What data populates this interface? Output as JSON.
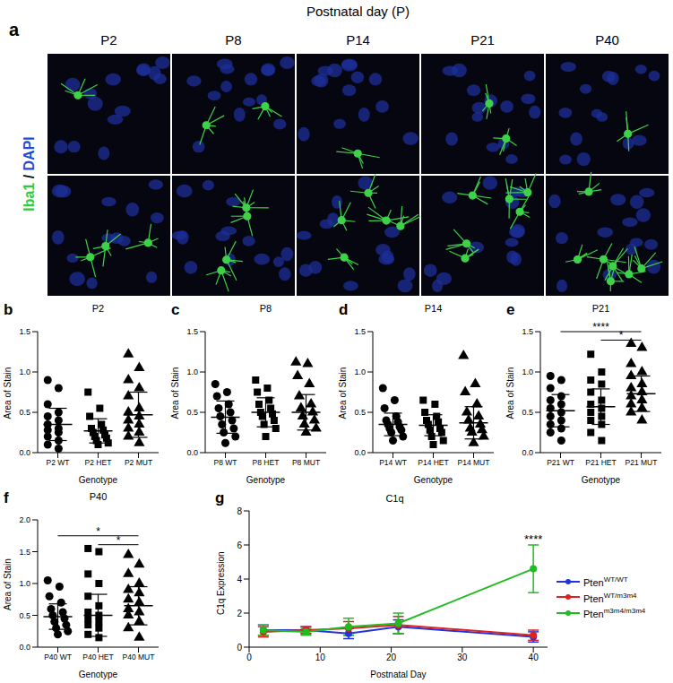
{
  "image_panel": {
    "panel": "a",
    "title": "Postnatal day (P)",
    "columns": [
      "P2",
      "P8",
      "P14",
      "P21",
      "P40"
    ],
    "stain": [
      {
        "text": "Iba1",
        "color": "#2ecc40"
      },
      {
        "text": " / ",
        "color": "#000000"
      },
      {
        "text": "DAPI",
        "color": "#1f4fd6"
      }
    ]
  },
  "chart_data": [
    {
      "panel": "b",
      "type": "scatter",
      "title": "P2",
      "x_label": "Genotype",
      "y_label": "Area of Stain",
      "color": "#000000",
      "categories": [
        "P2 WT",
        "P2 HET",
        "P2 MUT"
      ],
      "ylim": [
        0,
        1.5
      ],
      "yticks": [
        {
          "value": 0,
          "label": "0.0"
        },
        {
          "value": 0.5,
          "label": "0.5"
        },
        {
          "value": 1,
          "label": "1.0"
        },
        {
          "value": 1.5,
          "label": "1.5"
        }
      ],
      "groups": [
        {
          "marker": "circle",
          "values": [
            0.9,
            0.8,
            0.6,
            0.5,
            0.45,
            0.4,
            0.35,
            0.3,
            0.28,
            0.25,
            0.2,
            0.15,
            0.1,
            0.05
          ],
          "mean": 0.35,
          "sd": 0.2
        },
        {
          "marker": "square",
          "values": [
            0.75,
            0.55,
            0.45,
            0.35,
            0.3,
            0.28,
            0.25,
            0.22,
            0.2,
            0.18,
            0.15,
            0.12,
            0.1
          ],
          "mean": 0.27,
          "sd": 0.15
        },
        {
          "marker": "triangle",
          "values": [
            1.22,
            1.05,
            0.9,
            0.8,
            0.7,
            0.55,
            0.5,
            0.45,
            0.4,
            0.35,
            0.3,
            0.25,
            0.2,
            0.12
          ],
          "mean": 0.47,
          "sd": 0.28
        }
      ],
      "annotations": []
    },
    {
      "panel": "c",
      "type": "scatter",
      "title": "P8",
      "x_label": "Genotype",
      "y_label": "Area of Stain",
      "color": "#000000",
      "categories": [
        "P8 WT",
        "P8 HET",
        "P8 MUT"
      ],
      "ylim": [
        0,
        1.5
      ],
      "yticks": [
        {
          "value": 0,
          "label": "0.0"
        },
        {
          "value": 0.5,
          "label": "0.5"
        },
        {
          "value": 1,
          "label": "1.0"
        },
        {
          "value": 1.5,
          "label": "1.5"
        }
      ],
      "groups": [
        {
          "marker": "circle",
          "values": [
            0.85,
            0.75,
            0.7,
            0.6,
            0.55,
            0.5,
            0.45,
            0.4,
            0.35,
            0.3,
            0.25,
            0.2,
            0.12
          ],
          "mean": 0.44,
          "sd": 0.2
        },
        {
          "marker": "square",
          "values": [
            0.9,
            0.8,
            0.75,
            0.65,
            0.6,
            0.55,
            0.5,
            0.48,
            0.45,
            0.4,
            0.35,
            0.3,
            0.2
          ],
          "mean": 0.5,
          "sd": 0.18
        },
        {
          "marker": "triangle",
          "values": [
            1.12,
            1.1,
            0.95,
            0.85,
            0.7,
            0.6,
            0.55,
            0.5,
            0.45,
            0.4,
            0.35,
            0.3,
            0.25
          ],
          "mean": 0.5,
          "sd": 0.22
        }
      ],
      "annotations": []
    },
    {
      "panel": "d",
      "type": "scatter",
      "title": "P14",
      "x_label": "Genotype",
      "y_label": "Area of Stain",
      "color": "#000000",
      "categories": [
        "P14 WT",
        "P14 HET",
        "P14 MUT"
      ],
      "ylim": [
        0,
        1.5
      ],
      "yticks": [
        {
          "value": 0,
          "label": "0.0"
        },
        {
          "value": 0.5,
          "label": "0.5"
        },
        {
          "value": 1,
          "label": "1.0"
        },
        {
          "value": 1.5,
          "label": "1.5"
        }
      ],
      "groups": [
        {
          "marker": "circle",
          "values": [
            0.8,
            0.65,
            0.55,
            0.45,
            0.4,
            0.38,
            0.35,
            0.32,
            0.3,
            0.28,
            0.25,
            0.2,
            0.15
          ],
          "mean": 0.35,
          "sd": 0.14
        },
        {
          "marker": "square",
          "values": [
            0.65,
            0.6,
            0.5,
            0.45,
            0.4,
            0.38,
            0.35,
            0.3,
            0.28,
            0.25,
            0.2,
            0.15,
            0.1
          ],
          "mean": 0.34,
          "sd": 0.13
        },
        {
          "marker": "triangle",
          "values": [
            1.2,
            0.85,
            0.75,
            0.6,
            0.5,
            0.45,
            0.4,
            0.35,
            0.3,
            0.28,
            0.25,
            0.2,
            0.12
          ],
          "mean": 0.37,
          "sd": 0.2
        }
      ],
      "annotations": []
    },
    {
      "panel": "e",
      "type": "scatter",
      "title": "P21",
      "x_label": "Genotype",
      "y_label": "Area of Stain",
      "color": "#000000",
      "categories": [
        "P21 WT",
        "P21 HET",
        "P21 MUT"
      ],
      "ylim": [
        0,
        1.5
      ],
      "yticks": [
        {
          "value": 0,
          "label": "0.0"
        },
        {
          "value": 0.5,
          "label": "0.5"
        },
        {
          "value": 1,
          "label": "1.0"
        },
        {
          "value": 1.5,
          "label": "1.5"
        }
      ],
      "groups": [
        {
          "marker": "circle",
          "values": [
            0.95,
            0.9,
            0.8,
            0.7,
            0.65,
            0.6,
            0.55,
            0.5,
            0.45,
            0.4,
            0.35,
            0.3,
            0.25,
            0.15
          ],
          "mean": 0.52,
          "sd": 0.2
        },
        {
          "marker": "square",
          "values": [
            1.22,
            1.0,
            0.9,
            0.85,
            0.75,
            0.65,
            0.6,
            0.55,
            0.5,
            0.45,
            0.4,
            0.35,
            0.25,
            0.15
          ],
          "mean": 0.57,
          "sd": 0.22
        },
        {
          "marker": "triangle",
          "values": [
            1.35,
            1.3,
            1.1,
            1.0,
            0.95,
            0.85,
            0.8,
            0.75,
            0.7,
            0.65,
            0.6,
            0.55,
            0.5,
            0.4
          ],
          "mean": 0.73,
          "sd": 0.22
        }
      ],
      "annotations": [
        {
          "text": "****",
          "from": 0,
          "to": 2
        },
        {
          "text": "*",
          "from": 1,
          "to": 2
        }
      ]
    },
    {
      "panel": "f",
      "type": "scatter",
      "title": "P40",
      "x_label": "Genotype",
      "y_label": "Area of Stain",
      "color": "#000000",
      "categories": [
        "P40 WT",
        "P40 HET",
        "P40 MUT"
      ],
      "ylim": [
        0,
        2
      ],
      "yticks": [
        {
          "value": 0,
          "label": "0.0"
        },
        {
          "value": 0.5,
          "label": "0.5"
        },
        {
          "value": 1,
          "label": "1.0"
        },
        {
          "value": 1.5,
          "label": "1.5"
        },
        {
          "value": 2,
          "label": "2.0"
        }
      ],
      "groups": [
        {
          "marker": "circle",
          "values": [
            1.05,
            0.95,
            0.8,
            0.7,
            0.6,
            0.55,
            0.5,
            0.45,
            0.4,
            0.35,
            0.3,
            0.25,
            0.2
          ],
          "mean": 0.48,
          "sd": 0.2
        },
        {
          "marker": "square",
          "values": [
            1.55,
            1.5,
            1.15,
            1.0,
            0.8,
            0.65,
            0.55,
            0.5,
            0.45,
            0.4,
            0.35,
            0.3,
            0.2,
            0.15
          ],
          "mean": 0.5,
          "sd": 0.33
        },
        {
          "marker": "triangle",
          "values": [
            1.45,
            1.3,
            1.15,
            1.0,
            0.9,
            0.85,
            0.75,
            0.7,
            0.6,
            0.55,
            0.5,
            0.4,
            0.3,
            0.15
          ],
          "mean": 0.65,
          "sd": 0.3
        }
      ],
      "annotations": [
        {
          "text": "*",
          "from": 0,
          "to": 2
        },
        {
          "text": "*",
          "from": 1,
          "to": 2
        }
      ]
    },
    {
      "panel": "g",
      "type": "line",
      "title": "C1q",
      "x_label": "Postnatal Day",
      "y_label": "C1q Expression",
      "x": [
        2,
        8,
        14,
        21,
        40
      ],
      "xlim": [
        0,
        42
      ],
      "xticks": [
        0,
        10,
        20,
        30,
        40
      ],
      "ylim": [
        0,
        8
      ],
      "yticks": [
        0,
        2,
        4,
        6,
        8
      ],
      "legend": "right",
      "marker": "circle",
      "series": [
        {
          "name": "PtenWT/WT",
          "color": "#2233dd",
          "values": [
            1.0,
            1.0,
            0.8,
            1.2,
            0.6
          ],
          "error": [
            0.3,
            0.2,
            0.3,
            0.4,
            0.3
          ]
        },
        {
          "name": "PtenWT/m3m4",
          "color": "#dd2222",
          "values": [
            0.9,
            1.0,
            1.1,
            1.3,
            0.7
          ],
          "error": [
            0.3,
            0.2,
            0.4,
            0.5,
            0.3
          ]
        },
        {
          "name": "Ptenm3m4/m3m4",
          "color": "#22bb22",
          "values": [
            1.0,
            0.9,
            1.2,
            1.4,
            4.6
          ],
          "error": [
            0.3,
            0.2,
            0.5,
            0.6,
            1.4
          ]
        }
      ],
      "annotations": [
        {
          "text": "****",
          "x": 40
        }
      ]
    }
  ]
}
